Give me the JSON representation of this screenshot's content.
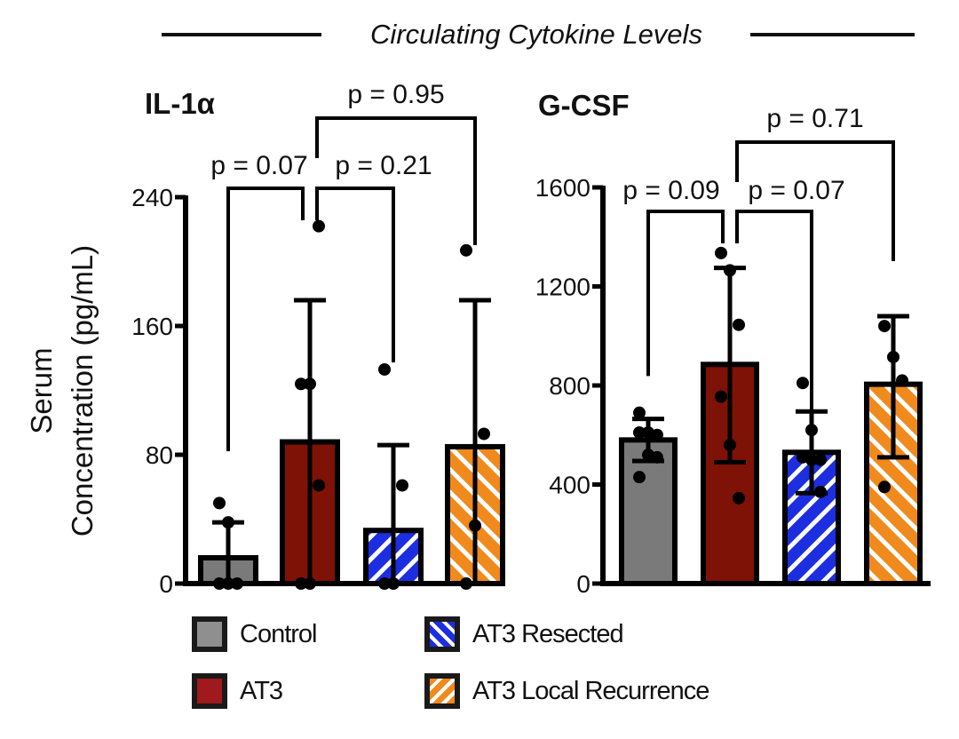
{
  "title": "Circulating Cytokine Levels",
  "ylabel_line1": "Serum",
  "ylabel_line2": "Concentration (pg/mL)",
  "colors": {
    "Control": "#7a7a7a",
    "AT3": "#7e1206",
    "AT3 Resected": "#1c2ee0",
    "AT3 Local Recurrence": "#f08a1c",
    "axis": "#000000"
  },
  "legend": [
    {
      "label": "Control",
      "pattern": "solid",
      "color": "#8f8f8f"
    },
    {
      "label": "AT3",
      "pattern": "solid",
      "color": "#a0191c"
    },
    {
      "label": "AT3 Resected",
      "pattern": "hatch-back",
      "color": "#1c2ee0"
    },
    {
      "label": "AT3 Local Recurrence",
      "pattern": "hatch-forward",
      "color": "#f08a1c"
    }
  ],
  "chart_data": [
    {
      "type": "bar",
      "title": "IL-1α",
      "xlabel": "",
      "ylabel": "Serum Concentration (pg/mL)",
      "ylim": [
        0,
        240
      ],
      "yticks": [
        0,
        80,
        160,
        240
      ],
      "categories": [
        "Control",
        "AT3",
        "AT3 Resected",
        "AT3 Local Recurrence"
      ],
      "values": [
        16,
        88,
        33,
        85
      ],
      "error_upper": [
        38,
        176,
        86,
        176
      ],
      "error_lower": [
        null,
        null,
        null,
        null
      ],
      "points": [
        [
          0,
          0,
          0,
          50,
          38
        ],
        [
          0,
          0,
          61,
          124,
          124,
          222
        ],
        [
          0,
          0,
          61,
          133
        ],
        [
          0,
          36,
          93,
          207
        ]
      ],
      "annotations": [
        {
          "text": "p = 0.07",
          "from": 0,
          "to": 1
        },
        {
          "text": "p = 0.21",
          "from": 1,
          "to": 2
        },
        {
          "text": "p = 0.95",
          "from": 1,
          "to": 3
        }
      ]
    },
    {
      "type": "bar",
      "title": "G-CSF",
      "xlabel": "",
      "ylabel": "Serum Concentration (pg/mL)",
      "ylim": [
        0,
        1600
      ],
      "yticks": [
        0,
        400,
        800,
        1200,
        1600
      ],
      "categories": [
        "Control",
        "AT3",
        "AT3 Resected",
        "AT3 Local Recurrence"
      ],
      "values": [
        580,
        885,
        530,
        805
      ],
      "error_upper": [
        665,
        1275,
        695,
        1080
      ],
      "error_lower": [
        495,
        490,
        365,
        510
      ],
      "points": [
        [
          690,
          610,
          600,
          610,
          520,
          510,
          430
        ],
        [
          1335,
          1265,
          1045,
          755,
          560,
          345
        ],
        [
          810,
          620,
          500,
          510,
          500,
          370
        ],
        [
          1040,
          915,
          820,
          390
        ]
      ],
      "annotations": [
        {
          "text": "p = 0.09",
          "from": 0,
          "to": 1
        },
        {
          "text": "p = 0.07",
          "from": 1,
          "to": 2
        },
        {
          "text": "p = 0.71",
          "from": 1,
          "to": 3
        }
      ]
    }
  ]
}
